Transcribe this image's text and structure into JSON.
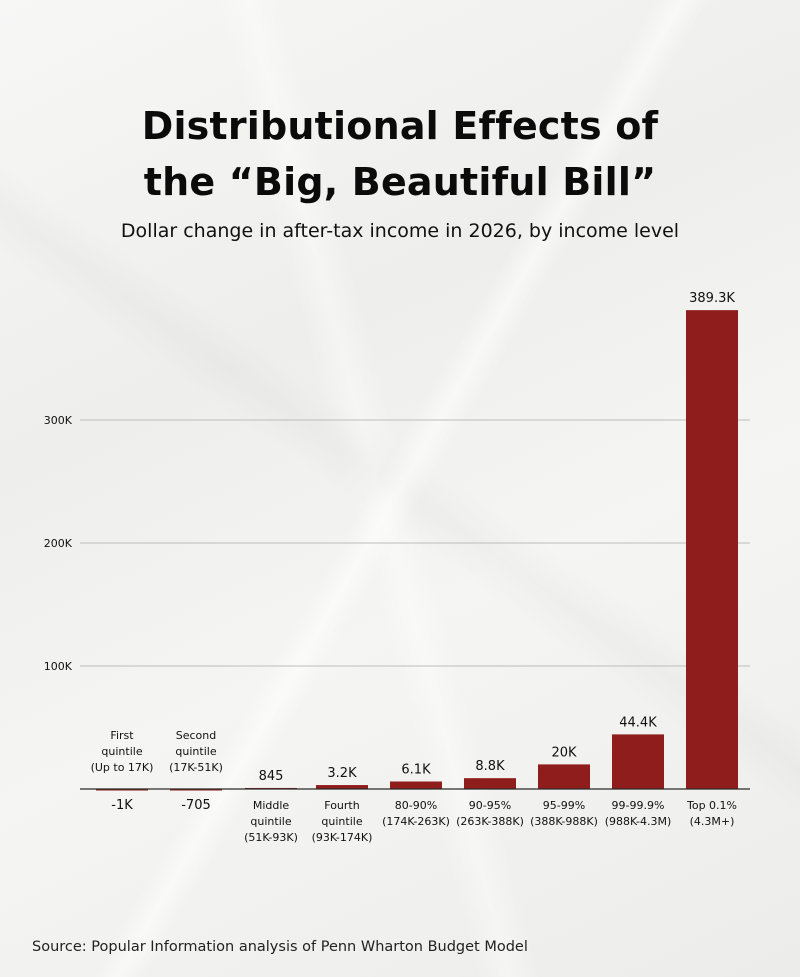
{
  "title_lines": [
    "Distributional Effects of",
    "the “Big, Beautiful Bill”"
  ],
  "subtitle": "Dollar change in after-tax income in 2026, by income level",
  "source": "Source: Popular Information analysis of Penn Wharton Budget Model",
  "colors": {
    "bar": "#8f1d1b",
    "grid": "#bdbdbb",
    "axis": "#2a2a2a",
    "text": "#111111"
  },
  "chart_data": {
    "type": "bar",
    "title": "Distributional Effects of the “Big, Beautiful Bill”",
    "subtitle": "Dollar change in after-tax income in 2026, by income level",
    "xlabel": "",
    "ylabel": "",
    "ylim": [
      0,
      389300
    ],
    "grid": true,
    "yticks": [
      {
        "value": 100000,
        "label": "100K"
      },
      {
        "value": 200000,
        "label": "200K"
      },
      {
        "value": 300000,
        "label": "300K"
      }
    ],
    "categories": [
      [
        "First",
        "quintile",
        "(Up to 17K)"
      ],
      [
        "Second",
        "quintile",
        "(17K-51K)"
      ],
      [
        "Middle",
        "quintile",
        "(51K-93K)"
      ],
      [
        "Fourth",
        "quintile",
        "(93K-174K)"
      ],
      [
        "80-90%",
        "(174K-263K)"
      ],
      [
        "90-95%",
        "(263K-388K)"
      ],
      [
        "95-99%",
        "(388K-988K)"
      ],
      [
        "99-99.9%",
        "(988K-4.3M)"
      ],
      [
        "Top 0.1%",
        "(4.3M+)"
      ]
    ],
    "values": [
      -1000,
      -705,
      845,
      3200,
      6100,
      8800,
      20000,
      44400,
      389300
    ],
    "data_labels": [
      "-1K",
      "-705",
      "845",
      "3.2K",
      "6.1K",
      "8.8K",
      "20K",
      "44.4K",
      "389.3K"
    ]
  }
}
